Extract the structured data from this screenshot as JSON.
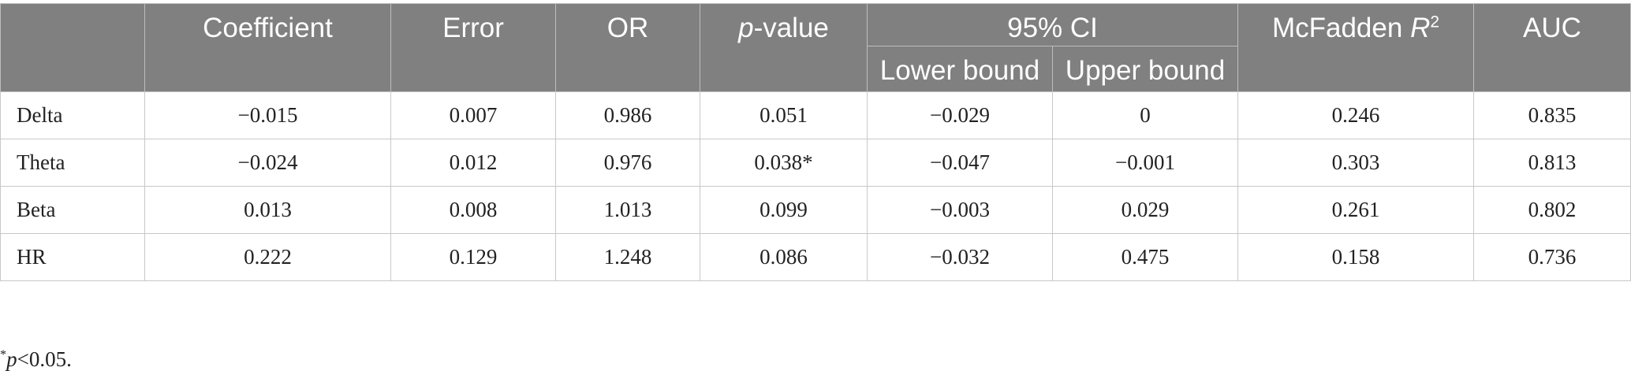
{
  "header": {
    "row_label": "",
    "coefficient": "Coefficient",
    "error": "Error",
    "or": "OR",
    "p_value_p": "p",
    "p_value_rest": "-value",
    "ci": "95% CI",
    "lower_bound": "Lower bound",
    "upper_bound": "Upper bound",
    "mcfadden_text": "McFadden ",
    "mcfadden_r": "R",
    "mcfadden_exp": "2",
    "auc": "AUC"
  },
  "rows": [
    {
      "label": "Delta",
      "coefficient": "−0.015",
      "error": "0.007",
      "or": "0.986",
      "p_value": "0.051",
      "lower": "−0.029",
      "upper": "0",
      "mcfadden": "0.246",
      "auc": "0.835"
    },
    {
      "label": "Theta",
      "coefficient": "−0.024",
      "error": "0.012",
      "or": "0.976",
      "p_value": "0.038*",
      "lower": "−0.047",
      "upper": "−0.001",
      "mcfadden": "0.303",
      "auc": "0.813"
    },
    {
      "label": "Beta",
      "coefficient": "0.013",
      "error": "0.008",
      "or": "1.013",
      "p_value": "0.099",
      "lower": "−0.003",
      "upper": "0.029",
      "mcfadden": "0.261",
      "auc": "0.802"
    },
    {
      "label": "HR",
      "coefficient": "0.222",
      "error": "0.129",
      "or": "1.248",
      "p_value": "0.086",
      "lower": "−0.032",
      "upper": "0.475",
      "mcfadden": "0.158",
      "auc": "0.736"
    }
  ],
  "footnote": {
    "star": "*",
    "p": "p",
    "rest": "<0.05."
  }
}
